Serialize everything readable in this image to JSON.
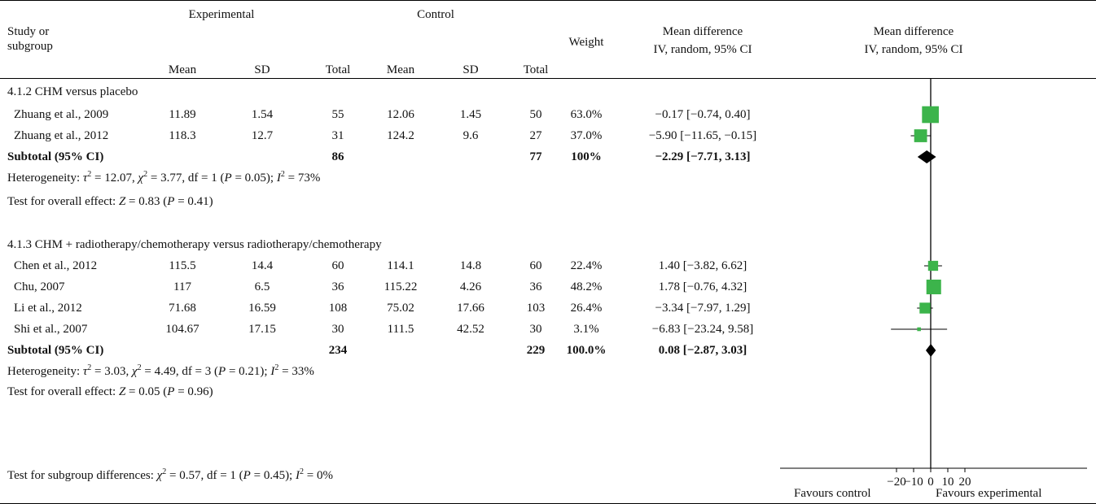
{
  "header": {
    "study": [
      "Study or",
      "subgroup"
    ],
    "experimental": "Experimental",
    "control": "Control",
    "mean": "Mean",
    "sd": "SD",
    "total": "Total",
    "weight": "Weight",
    "md_line1": "Mean difference",
    "md_line2": "IV, random, 95% CI",
    "plot_line1": "Mean difference",
    "plot_line2": "IV, random, 95% CI"
  },
  "subgroups": [
    {
      "title": "4.1.2 CHM versus placebo",
      "heterogeneity": {
        "tau2": "12.07",
        "chi2": "3.77",
        "df": "1",
        "p": "0.05",
        "i2": "73%"
      },
      "overall": {
        "z": "0.83",
        "p": "0.41"
      }
    },
    {
      "title": "4.1.3 CHM + radiotherapy/chemotherapy versus radiotherapy/chemotherapy",
      "heterogeneity": {
        "tau2": "3.03",
        "chi2": "4.49",
        "df": "3",
        "p": "0.21",
        "i2": "33%"
      },
      "overall": {
        "z": "0.05",
        "p": "0.96"
      }
    }
  ],
  "subgroup_test": {
    "chi2": "0.57",
    "df": "1",
    "p": "0.45",
    "i2": "0%"
  },
  "axis_labels": {
    "left": "Favours control",
    "right": "Favours experimental"
  },
  "colors": {
    "marker": "#3cb44b",
    "diamond": "#000000"
  },
  "chart_data": {
    "type": "forest",
    "x_axis": {
      "ticks": [
        -20,
        -10,
        0,
        10,
        20
      ],
      "range": [
        -40,
        40
      ]
    },
    "rows": [
      {
        "kind": "study",
        "name": "Zhuang et al., 2009",
        "exp_mean": "11.89",
        "exp_sd": "1.54",
        "exp_total": "55",
        "ctl_mean": "12.06",
        "ctl_sd": "1.45",
        "ctl_total": "50",
        "weight": "63.0%",
        "ci_text": "−0.17 [−0.74, 0.40]",
        "md": -0.17,
        "lo": -0.74,
        "hi": 0.4,
        "w": 63.0
      },
      {
        "kind": "study",
        "name": "Zhuang et al., 2012",
        "exp_mean": "118.3",
        "exp_sd": "12.7",
        "exp_total": "31",
        "ctl_mean": "124.2",
        "ctl_sd": "9.6",
        "ctl_total": "27",
        "weight": "37.0%",
        "ci_text": "−5.90 [−11.65, −0.15]",
        "md": -5.9,
        "lo": -11.65,
        "hi": -0.15,
        "w": 37.0
      },
      {
        "kind": "subtotal",
        "name": "Subtotal (95% CI)",
        "exp_total": "86",
        "ctl_total": "77",
        "weight": "100%",
        "ci_text": "−2.29 [−7.71, 3.13]",
        "md": -2.29,
        "lo": -7.71,
        "hi": 3.13
      },
      {
        "kind": "study",
        "name": "Chen et al., 2012",
        "exp_mean": "115.5",
        "exp_sd": "14.4",
        "exp_total": "60",
        "ctl_mean": "114.1",
        "ctl_sd": "14.8",
        "ctl_total": "60",
        "weight": "22.4%",
        "ci_text": "1.40 [−3.82, 6.62]",
        "md": 1.4,
        "lo": -3.82,
        "hi": 6.62,
        "w": 22.4
      },
      {
        "kind": "study",
        "name": "Chu, 2007",
        "exp_mean": "117",
        "exp_sd": "6.5",
        "exp_total": "36",
        "ctl_mean": "115.22",
        "ctl_sd": "4.26",
        "ctl_total": "36",
        "weight": "48.2%",
        "ci_text": "1.78 [−0.76, 4.32]",
        "md": 1.78,
        "lo": -0.76,
        "hi": 4.32,
        "w": 48.2
      },
      {
        "kind": "study",
        "name": "Li et al., 2012",
        "exp_mean": "71.68",
        "exp_sd": "16.59",
        "exp_total": "108",
        "ctl_mean": "75.02",
        "ctl_sd": "17.66",
        "ctl_total": "103",
        "weight": "26.4%",
        "ci_text": "−3.34 [−7.97, 1.29]",
        "md": -3.34,
        "lo": -7.97,
        "hi": 1.29,
        "w": 26.4
      },
      {
        "kind": "study",
        "name": "Shi et al., 2007",
        "exp_mean": "104.67",
        "exp_sd": "17.15",
        "exp_total": "30",
        "ctl_mean": "111.5",
        "ctl_sd": "42.52",
        "ctl_total": "30",
        "weight": "3.1%",
        "ci_text": "−6.83 [−23.24, 9.58]",
        "md": -6.83,
        "lo": -23.24,
        "hi": 9.58,
        "w": 3.1
      },
      {
        "kind": "subtotal",
        "name": "Subtotal (95% CI)",
        "exp_total": "234",
        "ctl_total": "229",
        "weight": "100.0%",
        "ci_text": "0.08 [−2.87, 3.03]",
        "md": 0.08,
        "lo": -2.87,
        "hi": 3.03
      }
    ]
  }
}
